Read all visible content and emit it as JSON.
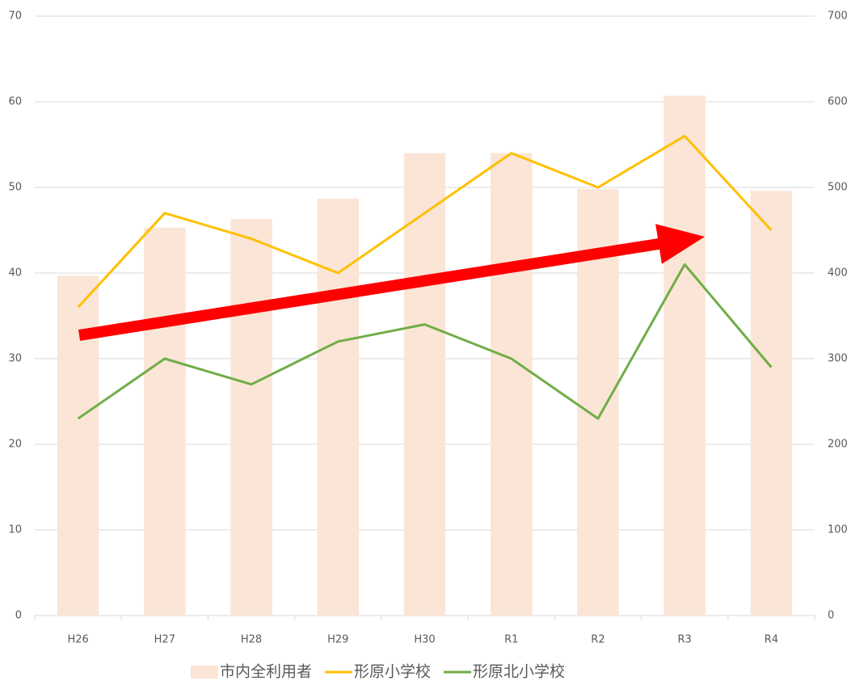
{
  "chart_data": {
    "type": "bar-line",
    "categories": [
      "H26",
      "H27",
      "H28",
      "H29",
      "H30",
      "R1",
      "R2",
      "R3",
      "R4"
    ],
    "series": [
      {
        "name": "市内全利用者",
        "type": "bar",
        "axis": "y2",
        "color": "#fbe5d6",
        "values": [
          397,
          453,
          463,
          487,
          540,
          540,
          498,
          607,
          496
        ]
      },
      {
        "name": "形原小学校",
        "type": "line",
        "axis": "y",
        "color": "#ffc000",
        "values": [
          36,
          47,
          44,
          40,
          47,
          54,
          50,
          56,
          45
        ]
      },
      {
        "name": "形原北小学校",
        "type": "line",
        "axis": "y",
        "color": "#70ad47",
        "values": [
          23,
          30,
          27,
          32,
          34,
          30,
          23,
          41,
          29
        ]
      }
    ],
    "ylim": [
      0,
      70
    ],
    "yticks": [
      0,
      10,
      20,
      30,
      40,
      50,
      60,
      70
    ],
    "y2lim": [
      0,
      700
    ],
    "y2ticks": [
      0,
      100,
      200,
      300,
      400,
      500,
      600,
      700
    ],
    "grid": true,
    "legend": "bottom"
  }
}
